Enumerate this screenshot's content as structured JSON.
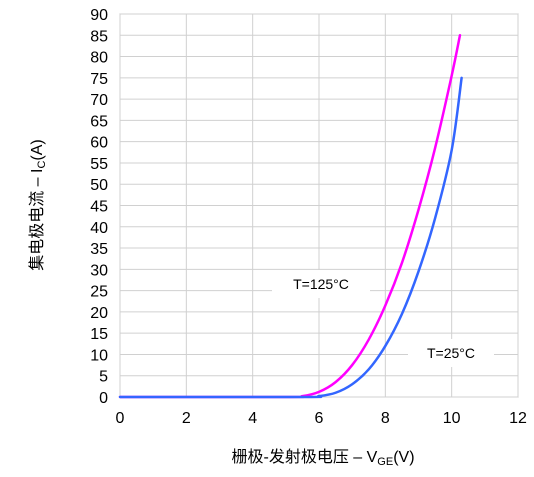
{
  "chart_data": {
    "type": "line",
    "xlabel": "栅极-发射极电压 – V",
    "xlabel_sub": "GE",
    "xlabel_suffix": "(V)",
    "ylabel": "集电极电流 – I",
    "ylabel_sub": "C",
    "ylabel_suffix": "(A)",
    "xlim": [
      0,
      12
    ],
    "ylim": [
      0,
      90
    ],
    "xticks": [
      0,
      2,
      4,
      6,
      8,
      10,
      12
    ],
    "yticks": [
      0,
      5,
      10,
      15,
      20,
      25,
      30,
      35,
      40,
      45,
      50,
      55,
      60,
      65,
      70,
      75,
      80,
      85,
      90
    ],
    "grid": true,
    "series": [
      {
        "name": "T=125°C",
        "color": "#ff00ff",
        "x": [
          0,
          5.0,
          5.5,
          6.0,
          6.5,
          7.0,
          7.5,
          8.0,
          8.5,
          9.0,
          9.5,
          10.0,
          10.25
        ],
        "y": [
          0,
          0,
          0.2,
          1.2,
          3.5,
          7.5,
          13.5,
          21.5,
          31.5,
          44.0,
          58.5,
          75.5,
          85.0
        ]
      },
      {
        "name": "T=25°C",
        "color": "#3366ff",
        "x": [
          0,
          5.5,
          6.0,
          6.5,
          7.0,
          7.5,
          8.0,
          8.5,
          9.0,
          9.5,
          10.0,
          10.3
        ],
        "y": [
          0,
          0,
          0.2,
          1.0,
          3.0,
          6.5,
          12.0,
          19.5,
          29.5,
          42.0,
          58.0,
          75.0
        ]
      }
    ],
    "annotations": [
      {
        "text": "T=125°C",
        "series": 0
      },
      {
        "text": "T=25°C",
        "series": 1
      }
    ]
  }
}
